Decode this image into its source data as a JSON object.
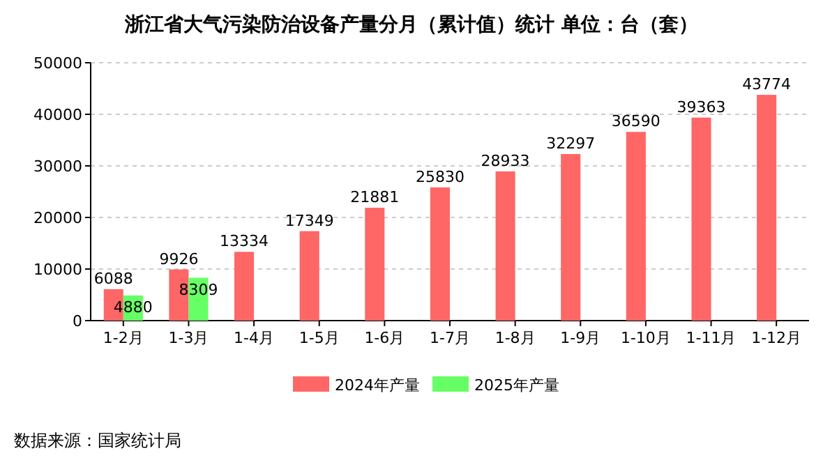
{
  "chart_data": {
    "type": "bar",
    "title": "浙江省大气污染防治设备产量分月（累计值）统计 单位：台（套）",
    "categories": [
      "1-2月",
      "1-3月",
      "1-4月",
      "1-5月",
      "1-6月",
      "1-7月",
      "1-8月",
      "1-9月",
      "1-10月",
      "1-11月",
      "1-12月"
    ],
    "series": [
      {
        "name": "2024年产量",
        "color": "#ff6666",
        "values": [
          6088,
          9926,
          13334,
          17349,
          21881,
          25830,
          28933,
          32297,
          36590,
          39363,
          43774
        ]
      },
      {
        "name": "2025年产量",
        "color": "#66ff66",
        "values": [
          4880,
          8309,
          null,
          null,
          null,
          null,
          null,
          null,
          null,
          null,
          null
        ]
      }
    ],
    "ylim": [
      0,
      50000
    ],
    "yticks": [
      0,
      10000,
      20000,
      30000,
      40000,
      50000
    ],
    "grid": "y",
    "legend": "bottom",
    "data_labels": true,
    "annotations": [
      "数据来源：国家统计局"
    ]
  }
}
